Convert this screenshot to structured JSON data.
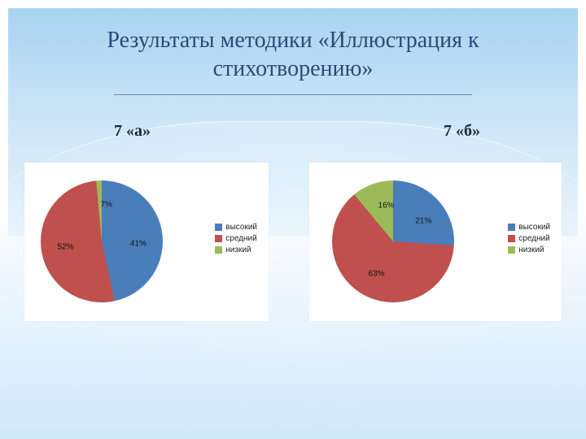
{
  "slide": {
    "title_line1": "Результаты методики «Иллюстрация к",
    "title_line2": "стихотворению»",
    "title_color": "#2b4a7a",
    "title_fontsize": 28,
    "underline_color": "#6f8fbf",
    "banner_gradient": [
      "#a7d3f0",
      "#c9e4f7",
      "#e8f4fc"
    ],
    "page_bg_gradient": [
      "#ffffff",
      "#cfe8fa"
    ]
  },
  "legend_labels": {
    "high": "высокий",
    "mid": "средний",
    "low": "низкий"
  },
  "colors": {
    "high": "#4a7ebb",
    "mid": "#bf504d",
    "low": "#9bbb59"
  },
  "chart_a": {
    "type": "pie",
    "title": "7 «а»",
    "background_color": "#ffffff",
    "start_angle_deg": 20,
    "slices": [
      {
        "key": "high",
        "value": 41,
        "label": "41%"
      },
      {
        "key": "mid",
        "value": 52,
        "label": "52%"
      },
      {
        "key": "low",
        "value": 7,
        "label": "7%"
      }
    ],
    "label_fontsize": 10
  },
  "chart_b": {
    "type": "pie",
    "title": "7 «б»",
    "background_color": "#ffffff",
    "start_angle_deg": 18,
    "slices": [
      {
        "key": "high",
        "value": 21,
        "label": "21%"
      },
      {
        "key": "mid",
        "value": 63,
        "label": "63%"
      },
      {
        "key": "low",
        "value": 16,
        "label": "16%"
      }
    ],
    "label_fontsize": 10
  }
}
